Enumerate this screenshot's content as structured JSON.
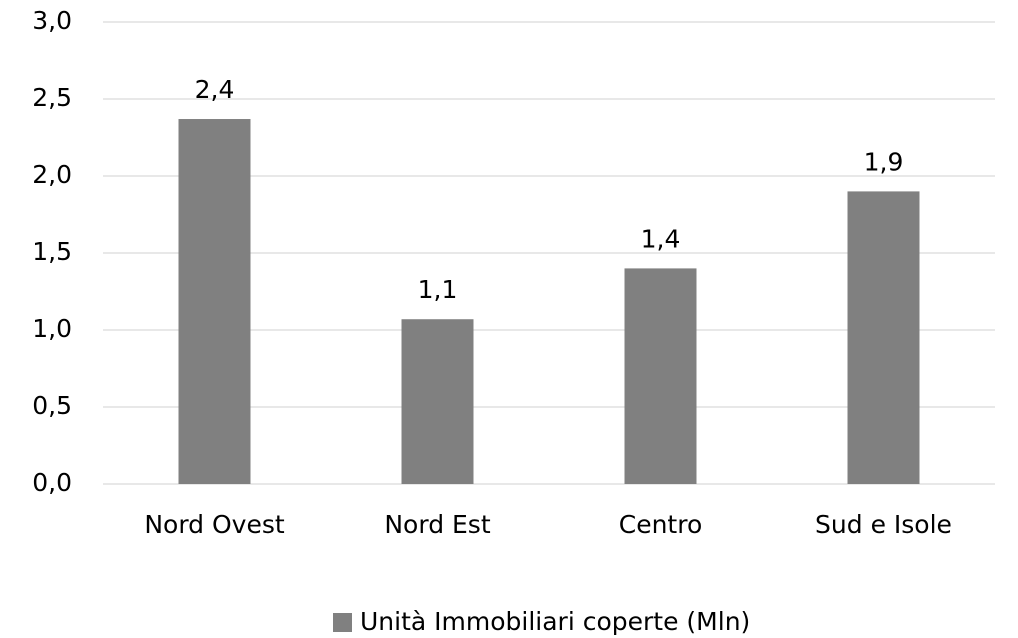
{
  "chart_data": {
    "type": "bar",
    "categories": [
      "Nord Ovest",
      "Nord Est",
      "Centro",
      "Sud e Isole"
    ],
    "series": [
      {
        "name": "Unità Immobiliari coperte (Mln)",
        "color": "#808080",
        "values": [
          2.37,
          1.07,
          1.4,
          1.9
        ],
        "value_labels": [
          "2,4",
          "1,1",
          "1,4",
          "1,9"
        ]
      }
    ],
    "ylim": [
      0,
      3
    ],
    "yticks": [
      {
        "value": 0,
        "label": "0,0"
      },
      {
        "value": 0.5,
        "label": "0,5"
      },
      {
        "value": 1,
        "label": "1,0"
      },
      {
        "value": 1.5,
        "label": "1,5"
      },
      {
        "value": 2,
        "label": "2,0"
      },
      {
        "value": 2.5,
        "label": "2,5"
      },
      {
        "value": 3,
        "label": "3,0"
      }
    ],
    "grid": true,
    "legend": "bottom"
  }
}
